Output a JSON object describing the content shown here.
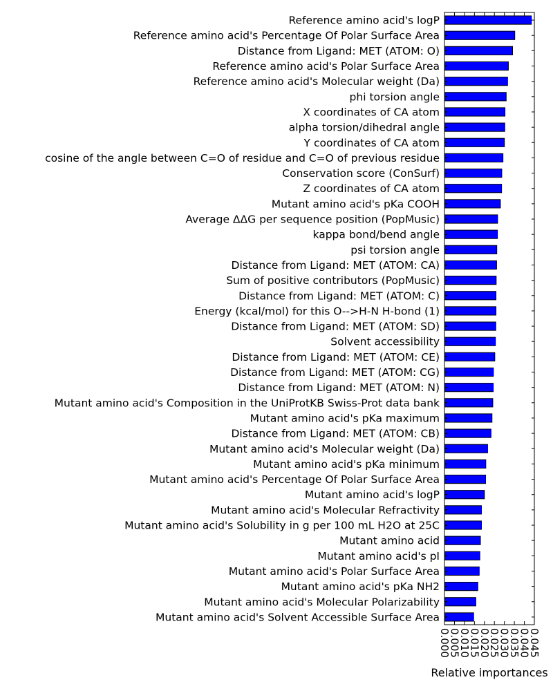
{
  "chart_data": {
    "type": "bar",
    "orientation": "horizontal",
    "title": "",
    "xlabel": "Relative importances",
    "ylabel": "",
    "xlim": [
      0,
      0.045
    ],
    "xticks": [
      "0.000",
      "0.005",
      "0.010",
      "0.015",
      "0.020",
      "0.025",
      "0.030",
      "0.035",
      "0.040",
      "0.045"
    ],
    "grid": false,
    "legend": "none",
    "bar_color": "#0000ff",
    "edge_color": "#000000",
    "categories": [
      "Reference amino acid's logP",
      "Reference amino acid's Percentage Of Polar Surface Area",
      "Distance from Ligand: MET (ATOM: O)",
      "Reference amino acid's Polar Surface Area",
      "Reference amino acid's Molecular weight (Da)",
      "phi torsion angle",
      "X coordinates of CA atom",
      "alpha torsion/dihedral angle",
      "Y coordinates of CA atom",
      "cosine of the angle between C=O of residue and C=O of previous residue",
      "Conservation score (ConSurf)",
      "Z coordinates of CA atom",
      "Mutant amino acid's pKa COOH",
      "Average ΔΔG per sequence position (PopMusic)",
      "kappa bond/bend angle",
      "psi torsion angle",
      "Distance from Ligand: MET (ATOM: CA)",
      "Sum of positive contributors (PopMusic)",
      "Distance from Ligand: MET (ATOM: C)",
      "Energy (kcal/mol) for this O-->H-N H-bond (1)",
      "Distance from Ligand: MET (ATOM: SD)",
      "Solvent accessibility",
      "Distance from Ligand: MET (ATOM: CE)",
      "Distance from Ligand: MET (ATOM: CG)",
      "Distance from Ligand: MET (ATOM: N)",
      "Mutant amino acid's Composition in the UniProtKB Swiss-Prot data bank",
      "Mutant amino acid's pKa maximum",
      "Distance from Ligand: MET (ATOM: CB)",
      "Mutant amino acid's Molecular weight (Da)",
      "Mutant amino acid's pKa minimum",
      "Mutant amino acid's Percentage Of Polar Surface Area",
      "Mutant amino acid's logP",
      "Mutant amino acid's Molecular Refractivity",
      "Mutant amino acid's Solubility in g per 100 mL H2O at 25C",
      "Mutant amino acid",
      "Mutant amino acid's pI",
      "Mutant amino acid's Polar Surface Area",
      "Mutant amino acid's pKa NH2",
      "Mutant amino acid's Molecular Polarizability",
      "Mutant amino acid's Solvent Accessible Surface Area"
    ],
    "values": [
      0.0435,
      0.0352,
      0.0341,
      0.032,
      0.0316,
      0.0309,
      0.0303,
      0.0302,
      0.03,
      0.0293,
      0.0287,
      0.0286,
      0.028,
      0.0266,
      0.0265,
      0.0262,
      0.0261,
      0.0259,
      0.0258,
      0.0258,
      0.0257,
      0.0255,
      0.0252,
      0.0245,
      0.0244,
      0.0242,
      0.0238,
      0.0233,
      0.0216,
      0.0207,
      0.0206,
      0.02,
      0.0185,
      0.0185,
      0.018,
      0.0177,
      0.0174,
      0.0167,
      0.0157,
      0.0146
    ]
  }
}
